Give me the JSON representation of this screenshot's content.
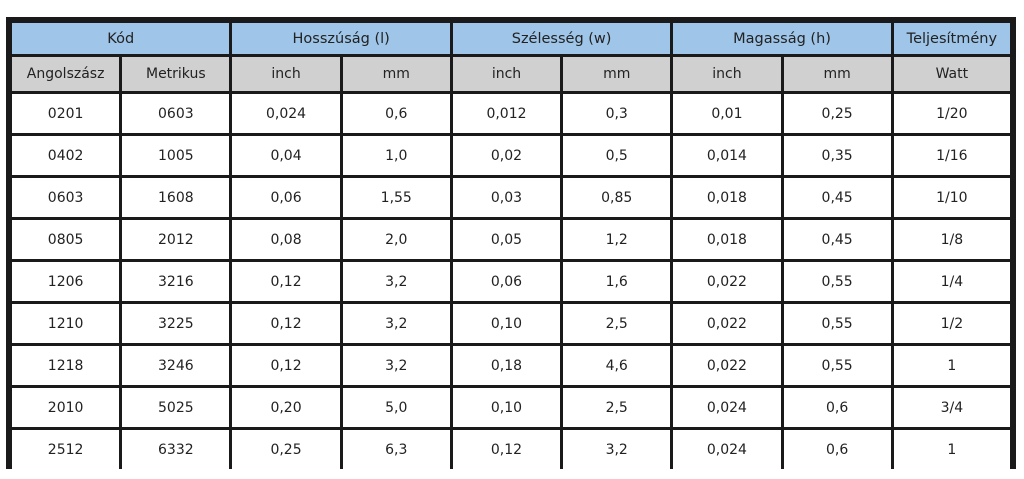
{
  "groups": [
    {
      "label": "Kód",
      "span": 2
    },
    {
      "label": "Hosszúság (l)",
      "span": 2
    },
    {
      "label": "Szélesség (w)",
      "span": 2
    },
    {
      "label": "Magasság (h)",
      "span": 2
    },
    {
      "label": "Teljesítmény",
      "span": 1
    }
  ],
  "subheaders": [
    "Angolszász",
    "Metrikus",
    "inch",
    "mm",
    "inch",
    "mm",
    "inch",
    "mm",
    "Watt"
  ],
  "rows": [
    [
      "0201",
      "0603",
      "0,024",
      "0,6",
      "0,012",
      "0,3",
      "0,01",
      "0,25",
      "1/20"
    ],
    [
      "0402",
      "1005",
      "0,04",
      "1,0",
      "0,02",
      "0,5",
      "0,014",
      "0,35",
      "1/16"
    ],
    [
      "0603",
      "1608",
      "0,06",
      "1,55",
      "0,03",
      "0,85",
      "0,018",
      "0,45",
      "1/10"
    ],
    [
      "0805",
      "2012",
      "0,08",
      "2,0",
      "0,05",
      "1,2",
      "0,018",
      "0,45",
      "1/8"
    ],
    [
      "1206",
      "3216",
      "0,12",
      "3,2",
      "0,06",
      "1,6",
      "0,022",
      "0,55",
      "1/4"
    ],
    [
      "1210",
      "3225",
      "0,12",
      "3,2",
      "0,10",
      "2,5",
      "0,022",
      "0,55",
      "1/2"
    ],
    [
      "1218",
      "3246",
      "0,12",
      "3,2",
      "0,18",
      "4,6",
      "0,022",
      "0,55",
      "1"
    ],
    [
      "2010",
      "5025",
      "0,20",
      "5,0",
      "0,10",
      "2,5",
      "0,024",
      "0,6",
      "3/4"
    ],
    [
      "2512",
      "6332",
      "0,25",
      "6,3",
      "0,12",
      "3,2",
      "0,024",
      "0,6",
      "1"
    ]
  ],
  "colors": {
    "group_header": "#9fc5e8",
    "sub_header": "#d0d0d0",
    "grid": "#1a1a1a"
  }
}
